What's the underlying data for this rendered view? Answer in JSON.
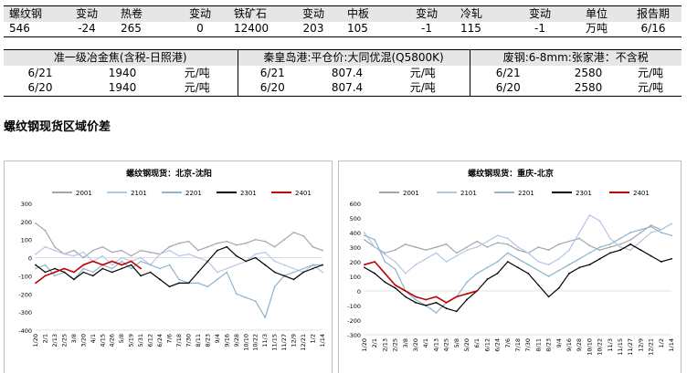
{
  "price_table": {
    "headers": [
      "螺纹钢",
      "变动",
      "热卷",
      "变动",
      "铁矿石",
      "变动",
      "中板",
      "变动",
      "冷轧",
      "变动",
      "单位",
      "报告期"
    ],
    "values": [
      "546",
      "-24",
      "265",
      "0",
      "12400",
      "203",
      "105",
      "-1",
      "115",
      "-1",
      "万吨",
      "6/16"
    ]
  },
  "spot_table": {
    "groups": [
      {
        "title": "准一级冶金焦(含税-日照港)",
        "rows": [
          [
            "6/21",
            "1940",
            "元/吨"
          ],
          [
            "6/20",
            "1940",
            "元/吨"
          ]
        ]
      },
      {
        "title": "秦皇岛港:平仓价:大同优混(Q5800K)",
        "rows": [
          [
            "6/21",
            "807.4",
            "元/吨"
          ],
          [
            "6/20",
            "807.4",
            "元/吨"
          ]
        ]
      },
      {
        "title": "废钢:6-8mm:张家港：不含税",
        "rows": [
          [
            "6/21",
            "2580",
            "元/吨"
          ],
          [
            "6/20",
            "2580",
            "元/吨"
          ]
        ]
      }
    ]
  },
  "section_title": "螺纹钢现货区域价差",
  "colors": {
    "s2001": "#a6a6a6",
    "s2101": "#b4c7e7",
    "s2201": "#8db4cc",
    "s2301": "#000000",
    "s2401": "#c00000",
    "table_header_bg": "#e7e6e6"
  },
  "chart_data": [
    {
      "type": "line",
      "title": "螺纹钢现货：北京-沈阳",
      "x": [
        "1/20",
        "2/1",
        "2/13",
        "2/25",
        "3/8",
        "3/20",
        "4/1",
        "4/15",
        "4/26",
        "5/8",
        "5/19",
        "5/31",
        "6/12",
        "6/24",
        "7/6",
        "7/18",
        "7/30",
        "8/11",
        "8/23",
        "9/4",
        "9/16",
        "9/28",
        "10/10",
        "10/22",
        "11/3",
        "11/15",
        "11/27",
        "12/9",
        "12/21",
        "1/2",
        "1/14"
      ],
      "ylim": [
        -400,
        300
      ],
      "yticks": [
        300,
        200,
        100,
        0,
        -100,
        -200,
        -300,
        -400
      ],
      "legend_position": "top",
      "series": [
        {
          "name": "2001",
          "values": [
            190,
            150,
            60,
            20,
            40,
            0,
            40,
            60,
            30,
            40,
            10,
            40,
            30,
            20,
            60,
            80,
            90,
            40,
            60,
            80,
            90,
            70,
            80,
            100,
            90,
            60,
            100,
            140,
            120,
            60,
            40
          ]
        },
        {
          "name": "2101",
          "values": [
            20,
            60,
            40,
            20,
            10,
            30,
            -20,
            10,
            -40,
            0,
            -20,
            0,
            -40,
            20,
            40,
            10,
            20,
            0,
            -20,
            -80,
            -60,
            -40,
            -20,
            20,
            30,
            -20,
            -40,
            -60,
            -80,
            -40,
            -80
          ]
        },
        {
          "name": "2201",
          "values": [
            -60,
            -40,
            -100,
            -80,
            -120,
            -60,
            -80,
            -40,
            -60,
            -20,
            -60,
            -20,
            -40,
            -60,
            -40,
            -120,
            -140,
            -140,
            -160,
            -120,
            -80,
            -200,
            -220,
            -240,
            -330,
            -160,
            -100,
            -80,
            -60,
            -40,
            -40
          ]
        },
        {
          "name": "2301",
          "values": [
            -40,
            -80,
            -60,
            -80,
            -120,
            -80,
            -100,
            -60,
            -80,
            -60,
            -40,
            -100,
            -80,
            -120,
            -160,
            -140,
            -140,
            -80,
            -20,
            40,
            60,
            10,
            -20,
            0,
            -40,
            -80,
            -100,
            -120,
            -80,
            -60,
            -40
          ]
        },
        {
          "name": "2401",
          "values": [
            -140,
            -100,
            -80,
            -60,
            -80,
            -40,
            -20,
            -40,
            -20,
            -40,
            -20,
            -60,
            null,
            null,
            null,
            null,
            null,
            null,
            null,
            null,
            null,
            null,
            null,
            null,
            null,
            null,
            null,
            null,
            null,
            null,
            null
          ]
        }
      ]
    },
    {
      "type": "line",
      "title": "螺纹钢现货：重庆-北京",
      "x": [
        "1/20",
        "2/1",
        "2/13",
        "2/25",
        "3/8",
        "3/20",
        "4/1",
        "4/13",
        "4/25",
        "5/8",
        "5/20",
        "6/1",
        "6/12",
        "6/24",
        "7/6",
        "7/18",
        "7/30",
        "8/11",
        "8/23",
        "9/4",
        "9/16",
        "9/28",
        "10/10",
        "10/22",
        "11/3",
        "11/15",
        "11/27",
        "12/9",
        "12/21",
        "1/2",
        "1/14"
      ],
      "ylim": [
        -300,
        600
      ],
      "yticks": [
        600,
        500,
        400,
        300,
        200,
        100,
        0,
        -100,
        -200,
        -300
      ],
      "legend_position": "top",
      "series": [
        {
          "name": "2001",
          "values": [
            350,
            300,
            260,
            280,
            320,
            300,
            280,
            300,
            320,
            260,
            300,
            340,
            300,
            330,
            320,
            280,
            260,
            300,
            280,
            320,
            340,
            360,
            310,
            280,
            300,
            320,
            350,
            400,
            450,
            420,
            460
          ]
        },
        {
          "name": "2101",
          "values": [
            400,
            300,
            250,
            200,
            120,
            180,
            220,
            260,
            200,
            240,
            280,
            300,
            340,
            380,
            360,
            300,
            260,
            200,
            180,
            220,
            280,
            400,
            520,
            480,
            360,
            300,
            280,
            340,
            400,
            420,
            460
          ]
        },
        {
          "name": "2201",
          "values": [
            380,
            350,
            200,
            150,
            0,
            -60,
            -100,
            -150,
            -80,
            -40,
            60,
            120,
            160,
            200,
            260,
            220,
            180,
            140,
            100,
            140,
            180,
            220,
            260,
            300,
            320,
            360,
            400,
            420,
            440,
            400,
            380
          ]
        },
        {
          "name": "2301",
          "values": [
            160,
            120,
            60,
            20,
            -40,
            -80,
            -100,
            -80,
            -120,
            -140,
            -60,
            0,
            80,
            120,
            200,
            160,
            120,
            40,
            -40,
            20,
            120,
            160,
            180,
            220,
            260,
            280,
            320,
            280,
            240,
            200,
            220
          ]
        },
        {
          "name": "2401",
          "values": [
            180,
            200,
            120,
            40,
            0,
            -40,
            -60,
            -40,
            -80,
            -40,
            -20,
            0,
            null,
            null,
            null,
            null,
            null,
            null,
            null,
            null,
            null,
            null,
            null,
            null,
            null,
            null,
            null,
            null,
            null,
            null,
            null
          ]
        }
      ]
    }
  ]
}
